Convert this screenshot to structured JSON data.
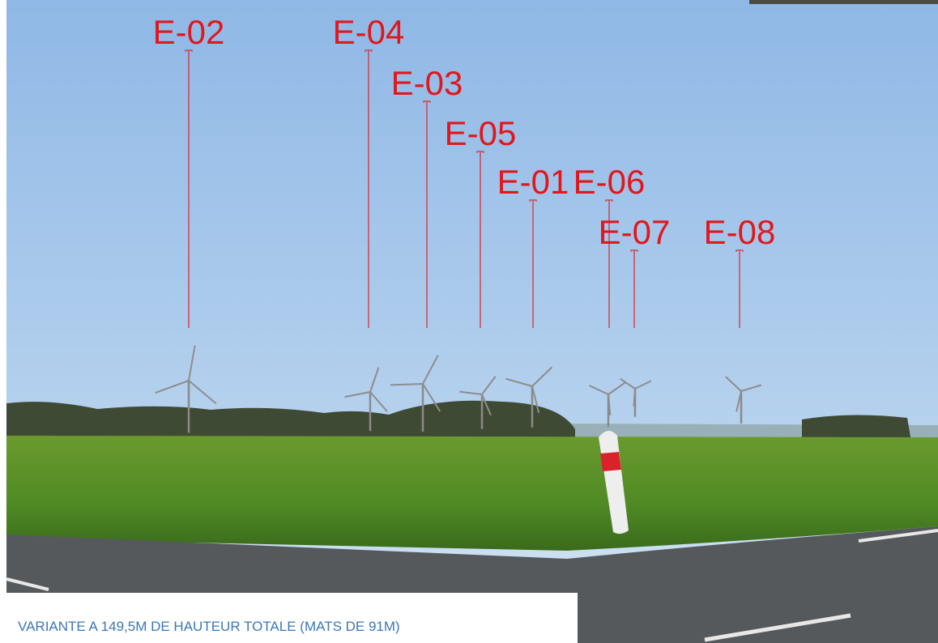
{
  "labels": [
    "E-02",
    "E-04",
    "E-03",
    "E-05",
    "E-01",
    "E-06",
    "E-07",
    "E-08"
  ],
  "caption": "VARIANTE A 149,5M DE HAUTEUR TOTALE  (MATS DE 91M)"
}
